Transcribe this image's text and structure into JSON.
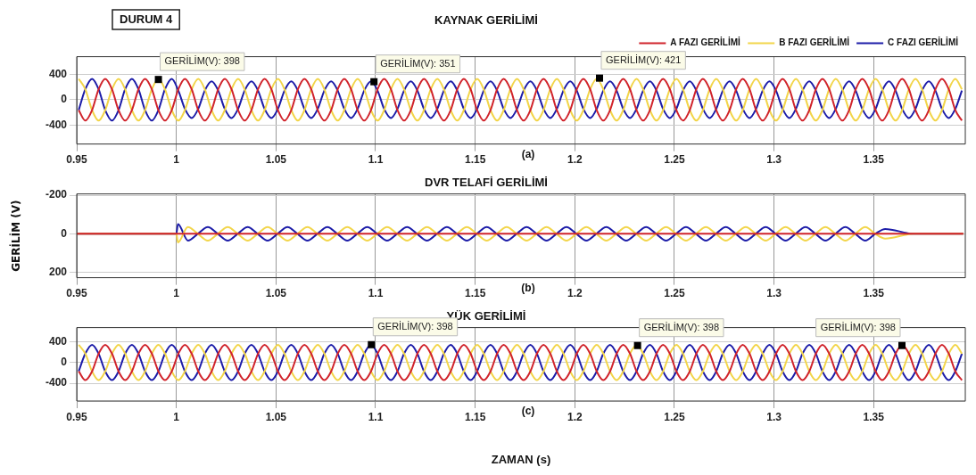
{
  "chart_data": [
    {
      "type": "line",
      "title": "KAYNAK GERİLİMİ",
      "subtitle": "DURUM 4",
      "legend": "top right",
      "grid": true,
      "marker": "none",
      "xlim": [
        0.95,
        1.396
      ],
      "xticks": [
        0.95,
        1,
        1.05,
        1.1,
        1.15,
        1.2,
        1.25,
        1.3,
        1.35
      ],
      "ylim": [
        -700,
        680
      ],
      "yticks": [
        -400,
        0,
        400
      ],
      "x": [
        0.951,
        0.9543,
        0.9577,
        0.961,
        0.9643,
        0.9677,
        0.971,
        0.9743,
        0.9777,
        0.981,
        0.9843,
        0.9877,
        0.991,
        0.9943,
        0.9977,
        1.001,
        1.0043,
        1.0077,
        1.011,
        1.0143,
        1.0177,
        1.021,
        1.0243,
        1.0277,
        1.031,
        1.0343,
        1.0377,
        1.041,
        1.0443,
        1.0477,
        1.051,
        1.0543,
        1.0577,
        1.061,
        1.0643,
        1.0677,
        1.071,
        1.0743,
        1.0777,
        1.081,
        1.0843,
        1.0877,
        1.091,
        1.0943,
        1.0977,
        1.101,
        1.1043,
        1.1077,
        1.111,
        1.1143,
        1.1177,
        1.121,
        1.1243,
        1.1277,
        1.131,
        1.1343,
        1.1377,
        1.141,
        1.1443,
        1.1477,
        1.151,
        1.1543,
        1.1577,
        1.161,
        1.1643,
        1.1677,
        1.171,
        1.1743,
        1.1777,
        1.181,
        1.1843,
        1.1877,
        1.191,
        1.1943,
        1.1977,
        1.201,
        1.2043,
        1.2077,
        1.211,
        1.2143,
        1.2177,
        1.221,
        1.2243,
        1.2277,
        1.231,
        1.2343,
        1.2377,
        1.241,
        1.2443,
        1.2477,
        1.251,
        1.2543,
        1.2577,
        1.261,
        1.2643,
        1.2677,
        1.271,
        1.2743,
        1.2777,
        1.281,
        1.2843,
        1.2877,
        1.291,
        1.2943,
        1.2977,
        1.301,
        1.3043,
        1.3077,
        1.311,
        1.3143,
        1.3177,
        1.321,
        1.3243,
        1.3277,
        1.331,
        1.3343,
        1.3377,
        1.341,
        1.3443,
        1.3477,
        1.351,
        1.3543,
        1.3577,
        1.361,
        1.3643,
        1.3677,
        1.371,
        1.3743,
        1.3777,
        1.381,
        1.3843,
        1.3877,
        1.391,
        1.3943
      ],
      "series": [
        {
          "name": "A FAZI GERİLİMİ",
          "color": "#d0232b",
          "values": [
            -165,
            -330,
            -165,
            165,
            330,
            165,
            -165,
            -330,
            -165,
            165,
            330,
            165,
            -165,
            -330,
            -165,
            165,
            330,
            165,
            -165,
            -330,
            -165,
            165,
            330,
            165,
            -165,
            -330,
            -165,
            165,
            330,
            165,
            -165,
            -330,
            -165,
            165,
            330,
            165,
            -165,
            -330,
            -165,
            165,
            330,
            165,
            -165,
            -330,
            -165,
            165,
            330,
            165,
            -165,
            -330,
            -165,
            165,
            330,
            165,
            -165,
            -330,
            -165,
            165,
            330,
            165,
            -165,
            -330,
            -165,
            165,
            330,
            165,
            -165,
            -330,
            -165,
            165,
            330,
            165,
            -165,
            -330,
            -165,
            165,
            330,
            165,
            -165,
            -330,
            -165,
            165,
            330,
            165,
            -165,
            -330,
            -165,
            165,
            330,
            165,
            -165,
            -330,
            -165,
            165,
            330,
            165,
            -165,
            -330,
            -165,
            165,
            330,
            165,
            -165,
            -330,
            -165,
            165,
            330,
            165,
            -165,
            -330,
            -165,
            165,
            330,
            165,
            -165,
            -330,
            -165,
            165,
            330,
            165,
            -165,
            -330,
            -165,
            165,
            330,
            165,
            -165,
            -330,
            -165,
            165,
            330,
            165,
            -165,
            -330
          ]
        },
        {
          "name": "B FAZI GERİLİMİ",
          "color": "#f2d54a",
          "values": [
            330,
            165,
            -165,
            -330,
            -165,
            165,
            330,
            165,
            -165,
            -330,
            -165,
            165,
            330,
            165,
            -165,
            -330,
            -165,
            165,
            330,
            165,
            -165,
            -330,
            -165,
            165,
            330,
            165,
            -165,
            -330,
            -165,
            165,
            330,
            165,
            -165,
            -330,
            -165,
            165,
            330,
            165,
            -165,
            -330,
            -165,
            165,
            330,
            165,
            -165,
            -330,
            -165,
            165,
            330,
            165,
            -165,
            -330,
            -165,
            165,
            330,
            165,
            -165,
            -330,
            -165,
            165,
            330,
            165,
            -165,
            -330,
            -165,
            165,
            330,
            165,
            -165,
            -330,
            -165,
            165,
            330,
            165,
            -165,
            -330,
            -165,
            165,
            330,
            165,
            -165,
            -330,
            -165,
            165,
            330,
            165,
            -165,
            -330,
            -165,
            165,
            330,
            165,
            -165,
            -330,
            -165,
            165,
            330,
            165,
            -165,
            -330,
            -165,
            165,
            330,
            165,
            -165,
            -330,
            -165,
            165,
            330,
            165,
            -165,
            -330,
            -165,
            165,
            330,
            165,
            -165,
            -330,
            -165,
            165,
            330,
            165,
            -165,
            -330,
            -165,
            165,
            330,
            165,
            -165,
            -330,
            -165,
            165,
            330,
            165
          ]
        },
        {
          "name": "C FAZI GERİLİMİ",
          "color": "#1c1ca8",
          "values": [
            -165,
            165,
            330,
            165,
            -165,
            -330,
            -165,
            165,
            330,
            165,
            -165,
            -330,
            -165,
            165,
            330,
            145,
            -145,
            -290,
            -145,
            145,
            290,
            145,
            -145,
            -290,
            -145,
            145,
            290,
            145,
            -145,
            -290,
            -145,
            145,
            290,
            145,
            -145,
            -290,
            -145,
            145,
            290,
            145,
            -145,
            -290,
            -145,
            145,
            290,
            145,
            -145,
            -290,
            -145,
            145,
            290,
            145,
            -145,
            -290,
            -145,
            145,
            290,
            145,
            -145,
            -290,
            -145,
            145,
            290,
            145,
            -145,
            -290,
            -145,
            145,
            290,
            145,
            -145,
            -290,
            -145,
            145,
            290,
            145,
            -145,
            -290,
            -145,
            145,
            290,
            145,
            -145,
            -290,
            -145,
            145,
            290,
            145,
            -145,
            -290,
            -145,
            145,
            290,
            145,
            -145,
            -290,
            -145,
            145,
            290,
            145,
            -145,
            -290,
            -145,
            145,
            290,
            145,
            -145,
            -290,
            -145,
            145,
            290,
            145,
            -145,
            -290,
            -145,
            145,
            290,
            145,
            -145,
            -290,
            -145,
            145,
            290,
            145,
            -145,
            -290,
            -145,
            145,
            290,
            145,
            -145,
            -290,
            -145,
            145
          ]
        }
      ],
      "annotations": [
        "(a)",
        {
          "text": "GERİLİM(V): 398",
          "x": 0.991,
          "y": 320
        },
        {
          "text": "GERİLİM(V): 351",
          "x": 1.0992,
          "y": 284
        },
        {
          "text": "GERİLİM(V): 421",
          "x": 1.2124,
          "y": 341
        }
      ]
    },
    {
      "type": "line",
      "title": "DVR TELAFİ GERİLİMİ",
      "ylabel": "GERİLİM (V)",
      "legend": false,
      "grid": true,
      "marker": "none",
      "xlim": [
        0.95,
        1.396
      ],
      "xticks": [
        0.95,
        1,
        1.05,
        1.1,
        1.15,
        1.2,
        1.25,
        1.3,
        1.35
      ],
      "ylim": [
        228,
        -207
      ],
      "yticks": [
        -200,
        0,
        200
      ],
      "x": [
        0.95,
        0.975,
        1,
        1.0008,
        1.0058,
        1.0108,
        1.0158,
        1.0208,
        1.0258,
        1.0308,
        1.0358,
        1.0408,
        1.0458,
        1.0508,
        1.0558,
        1.0608,
        1.0658,
        1.0708,
        1.0758,
        1.0808,
        1.0858,
        1.0908,
        1.0958,
        1.1008,
        1.1058,
        1.1108,
        1.1158,
        1.1208,
        1.1258,
        1.1308,
        1.1358,
        1.1408,
        1.1458,
        1.1508,
        1.1558,
        1.1608,
        1.1658,
        1.1708,
        1.1758,
        1.1808,
        1.1858,
        1.1908,
        1.1958,
        1.2008,
        1.2058,
        1.2108,
        1.2158,
        1.2208,
        1.2258,
        1.2308,
        1.2358,
        1.2408,
        1.2458,
        1.2508,
        1.2558,
        1.2608,
        1.2658,
        1.2708,
        1.2758,
        1.2808,
        1.2858,
        1.2908,
        1.2958,
        1.3008,
        1.3058,
        1.3108,
        1.3158,
        1.3208,
        1.3258,
        1.3308,
        1.3358,
        1.3408,
        1.3458,
        1.3508,
        1.3558,
        1.37,
        1.395
      ],
      "series": [
        {
          "color": "#d0232b",
          "x": [
            0.95,
            1.395
          ],
          "values": [
            0,
            0
          ]
        },
        {
          "color": "#f2d54a",
          "values": [
            0,
            0,
            0,
            45,
            -35,
            0,
            35,
            0,
            -35,
            0,
            35,
            0,
            -35,
            0,
            35,
            0,
            -35,
            0,
            35,
            0,
            -35,
            0,
            35,
            0,
            -35,
            0,
            35,
            0,
            -35,
            0,
            35,
            0,
            -35,
            0,
            35,
            0,
            -35,
            0,
            35,
            0,
            -35,
            0,
            35,
            0,
            -35,
            0,
            35,
            0,
            -35,
            0,
            35,
            0,
            -35,
            0,
            35,
            0,
            -35,
            0,
            35,
            0,
            -35,
            0,
            35,
            0,
            -35,
            0,
            35,
            0,
            -35,
            0,
            35,
            0,
            -35,
            0,
            25,
            0,
            0
          ]
        },
        {
          "color": "#1c1ca8",
          "values": [
            0,
            0,
            0,
            -50,
            35,
            0,
            -35,
            0,
            35,
            0,
            -35,
            0,
            35,
            0,
            -35,
            0,
            35,
            0,
            -35,
            0,
            35,
            0,
            -35,
            0,
            35,
            0,
            -35,
            0,
            35,
            0,
            -35,
            0,
            35,
            0,
            -35,
            0,
            35,
            0,
            -35,
            0,
            35,
            0,
            -35,
            0,
            35,
            0,
            -35,
            0,
            35,
            0,
            -35,
            0,
            35,
            0,
            -35,
            0,
            35,
            0,
            -35,
            0,
            35,
            0,
            -35,
            0,
            35,
            0,
            -35,
            0,
            35,
            0,
            -35,
            0,
            35,
            0,
            -25,
            0,
            0
          ]
        }
      ],
      "annotations": [
        "(b)"
      ]
    },
    {
      "type": "line",
      "title": "YÜK GERİLİMİ",
      "xlabel": "ZAMAN (s)",
      "legend": false,
      "grid": true,
      "marker": "none",
      "xlim": [
        0.95,
        1.396
      ],
      "xticks": [
        0.95,
        1,
        1.05,
        1.1,
        1.15,
        1.2,
        1.25,
        1.3,
        1.35
      ],
      "ylim": [
        -740,
        670
      ],
      "yticks": [
        -400,
        0,
        400
      ],
      "x": [
        0.951,
        0.9543,
        0.9577,
        0.961,
        0.9643,
        0.9677,
        0.971,
        0.9743,
        0.9777,
        0.981,
        0.9843,
        0.9877,
        0.991,
        0.9943,
        0.9977,
        1.001,
        1.0043,
        1.0077,
        1.011,
        1.0143,
        1.0177,
        1.021,
        1.0243,
        1.0277,
        1.031,
        1.0343,
        1.0377,
        1.041,
        1.0443,
        1.0477,
        1.051,
        1.0543,
        1.0577,
        1.061,
        1.0643,
        1.0677,
        1.071,
        1.0743,
        1.0777,
        1.081,
        1.0843,
        1.0877,
        1.091,
        1.0943,
        1.0977,
        1.101,
        1.1043,
        1.1077,
        1.111,
        1.1143,
        1.1177,
        1.121,
        1.1243,
        1.1277,
        1.131,
        1.1343,
        1.1377,
        1.141,
        1.1443,
        1.1477,
        1.151,
        1.1543,
        1.1577,
        1.161,
        1.1643,
        1.1677,
        1.171,
        1.1743,
        1.1777,
        1.181,
        1.1843,
        1.1877,
        1.191,
        1.1943,
        1.1977,
        1.201,
        1.2043,
        1.2077,
        1.211,
        1.2143,
        1.2177,
        1.221,
        1.2243,
        1.2277,
        1.231,
        1.2343,
        1.2377,
        1.241,
        1.2443,
        1.2477,
        1.251,
        1.2543,
        1.2577,
        1.261,
        1.2643,
        1.2677,
        1.271,
        1.2743,
        1.2777,
        1.281,
        1.2843,
        1.2877,
        1.291,
        1.2943,
        1.2977,
        1.301,
        1.3043,
        1.3077,
        1.311,
        1.3143,
        1.3177,
        1.321,
        1.3243,
        1.3277,
        1.331,
        1.3343,
        1.3377,
        1.341,
        1.3443,
        1.3477,
        1.351,
        1.3543,
        1.3577,
        1.361,
        1.3643,
        1.3677,
        1.371,
        1.3743,
        1.3777,
        1.381,
        1.3843,
        1.3877,
        1.391,
        1.3943
      ],
      "series": [
        {
          "color": "#d0232b",
          "values": [
            -170,
            -340,
            -170,
            170,
            340,
            170,
            -170,
            -340,
            -170,
            170,
            340,
            170,
            -170,
            -340,
            -170,
            170,
            340,
            170,
            -170,
            -340,
            -170,
            170,
            340,
            170,
            -170,
            -340,
            -170,
            170,
            340,
            170,
            -170,
            -340,
            -170,
            170,
            340,
            170,
            -170,
            -340,
            -170,
            170,
            340,
            170,
            -170,
            -340,
            -170,
            170,
            340,
            170,
            -170,
            -340,
            -170,
            170,
            340,
            170,
            -170,
            -340,
            -170,
            170,
            340,
            170,
            -170,
            -340,
            -170,
            170,
            340,
            170,
            -170,
            -340,
            -170,
            170,
            340,
            170,
            -170,
            -340,
            -170,
            170,
            340,
            170,
            -170,
            -340,
            -170,
            170,
            340,
            170,
            -170,
            -340,
            -170,
            170,
            340,
            170,
            -170,
            -340,
            -170,
            170,
            340,
            170,
            -170,
            -340,
            -170,
            170,
            340,
            170,
            -170,
            -340,
            -170,
            170,
            340,
            170,
            -170,
            -340,
            -170,
            170,
            340,
            170,
            -170,
            -340,
            -170,
            170,
            340,
            170,
            -170,
            -340,
            -170,
            170,
            340,
            170,
            -170,
            -340,
            -170,
            170,
            340,
            170,
            -170,
            -340
          ]
        },
        {
          "color": "#f2d54a",
          "values": [
            340,
            170,
            -170,
            -340,
            -170,
            170,
            340,
            170,
            -170,
            -340,
            -170,
            170,
            340,
            170,
            -170,
            -340,
            -170,
            170,
            340,
            170,
            -170,
            -340,
            -170,
            170,
            340,
            170,
            -170,
            -340,
            -170,
            170,
            340,
            170,
            -170,
            -340,
            -170,
            170,
            340,
            170,
            -170,
            -340,
            -170,
            170,
            340,
            170,
            -170,
            -340,
            -170,
            170,
            340,
            170,
            -170,
            -340,
            -170,
            170,
            340,
            170,
            -170,
            -340,
            -170,
            170,
            340,
            170,
            -170,
            -340,
            -170,
            170,
            340,
            170,
            -170,
            -340,
            -170,
            170,
            340,
            170,
            -170,
            -340,
            -170,
            170,
            340,
            170,
            -170,
            -340,
            -170,
            170,
            340,
            170,
            -170,
            -340,
            -170,
            170,
            340,
            170,
            -170,
            -340,
            -170,
            170,
            340,
            170,
            -170,
            -340,
            -170,
            170,
            340,
            170,
            -170,
            -340,
            -170,
            170,
            340,
            170,
            -170,
            -340,
            -170,
            170,
            340,
            170,
            -170,
            -340,
            -170,
            170,
            340,
            170,
            -170,
            -340,
            -170,
            170,
            340,
            170,
            -170,
            -340,
            -170,
            170,
            340,
            170
          ]
        },
        {
          "color": "#1c1ca8",
          "values": [
            -170,
            170,
            340,
            170,
            -170,
            -340,
            -170,
            170,
            340,
            170,
            -170,
            -340,
            -170,
            170,
            340,
            170,
            -170,
            -340,
            -170,
            170,
            340,
            170,
            -170,
            -340,
            -170,
            170,
            340,
            170,
            -170,
            -340,
            -170,
            170,
            340,
            170,
            -170,
            -340,
            -170,
            170,
            340,
            170,
            -170,
            -340,
            -170,
            170,
            340,
            170,
            -170,
            -340,
            -170,
            170,
            340,
            170,
            -170,
            -340,
            -170,
            170,
            340,
            170,
            -170,
            -340,
            -170,
            170,
            340,
            170,
            -170,
            -340,
            -170,
            170,
            340,
            170,
            -170,
            -340,
            -170,
            170,
            340,
            170,
            -170,
            -340,
            -170,
            170,
            340,
            170,
            -170,
            -340,
            -170,
            170,
            340,
            170,
            -170,
            -340,
            -170,
            170,
            340,
            170,
            -170,
            -340,
            -170,
            170,
            340,
            170,
            -170,
            -340,
            -170,
            170,
            340,
            170,
            -170,
            -340,
            -170,
            170,
            340,
            170,
            -170,
            -340,
            -170,
            170,
            340,
            170,
            -170,
            -340,
            -170,
            170,
            340,
            170,
            -170,
            -340,
            -170,
            170,
            340,
            170,
            -170,
            -340,
            -170,
            170
          ]
        }
      ],
      "annotations": [
        "(c)",
        {
          "text": "GERİLİM(V): 398",
          "x": 1.0979,
          "y": 342
        },
        {
          "text": "GERİLİM(V): 398",
          "x": 1.2315,
          "y": 326
        },
        {
          "text": "GERİLİM(V): 398",
          "x": 1.3642,
          "y": 326
        }
      ]
    }
  ]
}
